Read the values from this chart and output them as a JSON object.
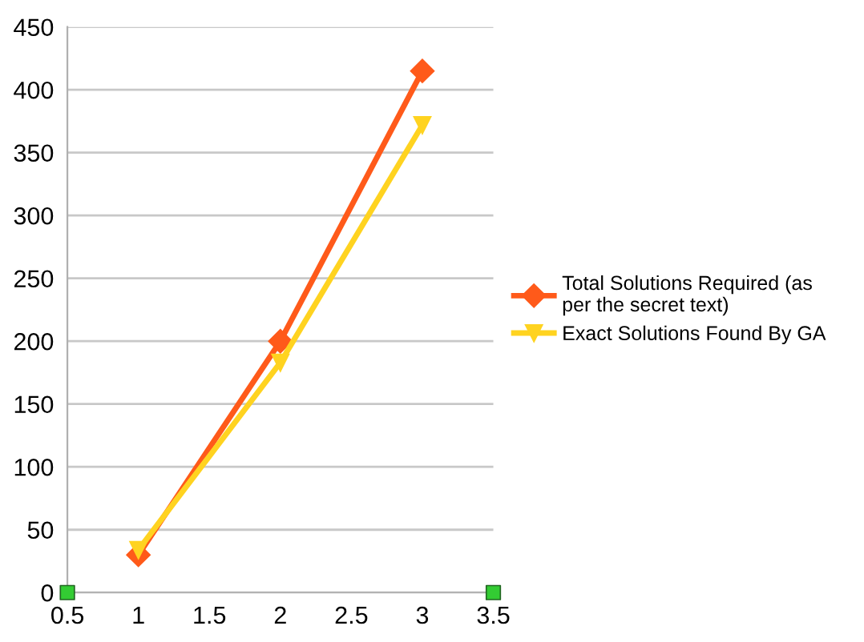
{
  "chart_data": {
    "type": "line",
    "x": [
      1,
      2,
      3
    ],
    "series": [
      {
        "name": "Total Solutions Required (as\nper the secret text)",
        "color": "#ff5a1a",
        "marker": "diamond",
        "values": [
          30,
          200,
          415
        ]
      },
      {
        "name": "Exact Solutions Found By GA",
        "color": "#ffd320",
        "marker": "triangle",
        "values": [
          34,
          183,
          372
        ]
      },
      {
        "type": "scatter",
        "color": "#33cc33",
        "marker": "square",
        "x": [
          0.5,
          3.5
        ],
        "values": [
          0,
          0
        ]
      }
    ],
    "xlim": [
      0.5,
      3.5
    ],
    "xticks": [
      0.5,
      1,
      1.5,
      2,
      2.5,
      3,
      3.5
    ],
    "ylim": [
      0,
      450
    ],
    "yticks": [
      0,
      50,
      100,
      150,
      200,
      250,
      300,
      350,
      400,
      450
    ],
    "grid": "y",
    "legend": "right",
    "line_style": "solid"
  }
}
